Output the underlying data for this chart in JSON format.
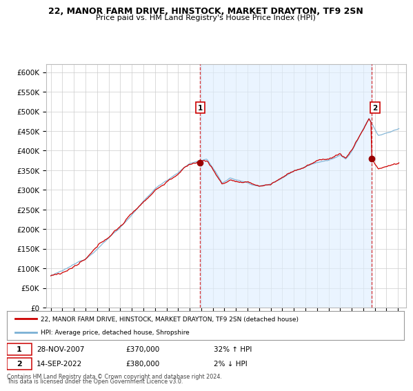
{
  "title_line1": "22, MANOR FARM DRIVE, HINSTOCK, MARKET DRAYTON, TF9 2SN",
  "title_line2": "Price paid vs. HM Land Registry's House Price Index (HPI)",
  "house_color": "#cc0000",
  "hpi_color": "#7ab0d4",
  "shading_color": "#ddeeff",
  "background_color": "#ffffff",
  "grid_color": "#cccccc",
  "ylim": [
    0,
    620000
  ],
  "yticks": [
    0,
    50000,
    100000,
    150000,
    200000,
    250000,
    300000,
    350000,
    400000,
    450000,
    500000,
    550000,
    600000
  ],
  "sale1_x": 2007.91,
  "sale1_y": 370000,
  "sale1_label": "1",
  "sale1_date": "28-NOV-2007",
  "sale1_price": "£370,000",
  "sale1_hpi": "32% ↑ HPI",
  "sale2_x": 2022.71,
  "sale2_y": 380000,
  "sale2_label": "2",
  "sale2_date": "14-SEP-2022",
  "sale2_price": "£380,000",
  "sale2_hpi": "2% ↓ HPI",
  "legend_label1": "22, MANOR FARM DRIVE, HINSTOCK, MARKET DRAYTON, TF9 2SN (detached house)",
  "legend_label2": "HPI: Average price, detached house, Shropshire",
  "footer1": "Contains HM Land Registry data © Crown copyright and database right 2024.",
  "footer2": "This data is licensed under the Open Government Licence v3.0.",
  "xmin": 1995,
  "xmax": 2025
}
